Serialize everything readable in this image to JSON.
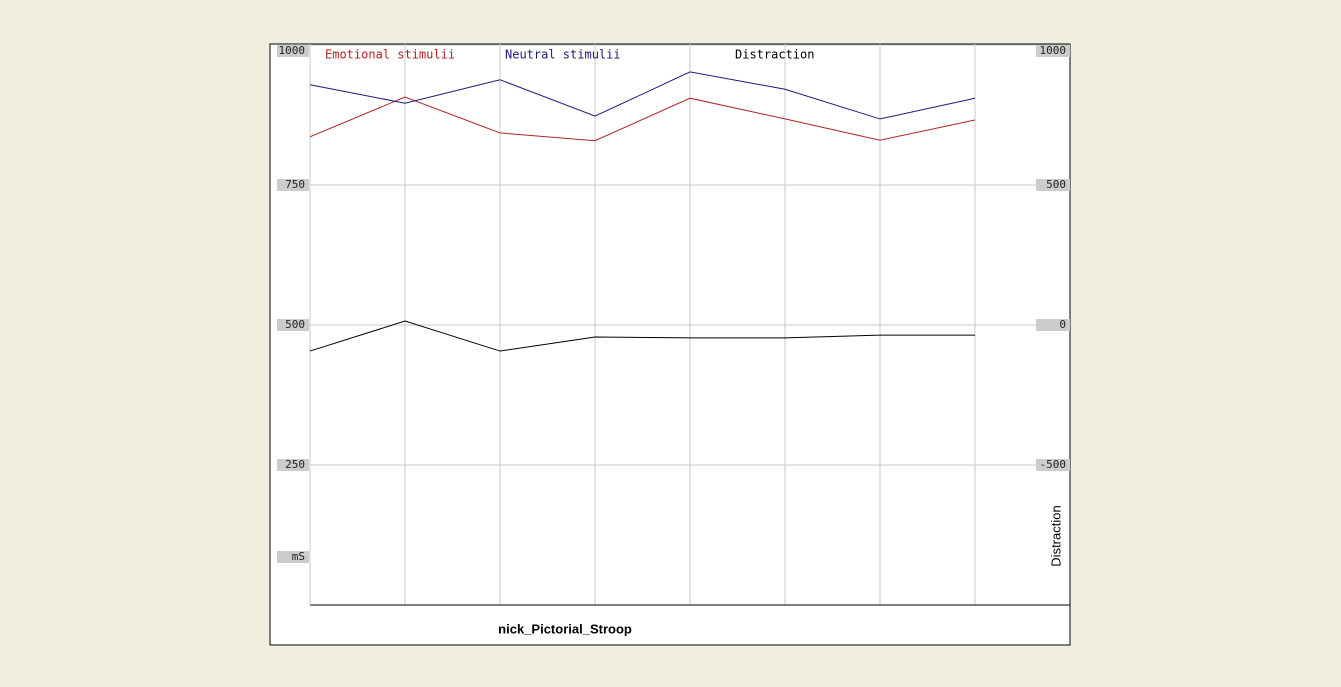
{
  "chart_data": {
    "type": "line",
    "xlabel": "nick_Pictorial_Stroop",
    "ylabel": "mS",
    "y2label": "Distraction",
    "categories": [
      null,
      null,
      null,
      null,
      null,
      null,
      null,
      null
    ],
    "series": [
      {
        "name": "Emotional stimulii",
        "color": "#b22222",
        "values": [
          836,
          907,
          843,
          829,
          905,
          868,
          830,
          866
        ]
      },
      {
        "name": "Neutral stimulii",
        "color": "#1a1a7a",
        "values": [
          929,
          896,
          938,
          873,
          952,
          921,
          868,
          905
        ]
      },
      {
        "name": "Distraction",
        "color": "#000000",
        "axis": "y2",
        "values": [
          -93,
          14,
          -93,
          -43,
          -46,
          -46,
          -36,
          -36
        ]
      }
    ],
    "ylim": [
      0,
      1000
    ],
    "yticks": [
      250,
      500,
      750,
      1000
    ],
    "y2lim": [
      -1000,
      1000
    ],
    "y2ticks": [
      -500,
      0,
      500,
      1000
    ],
    "grid": true
  }
}
